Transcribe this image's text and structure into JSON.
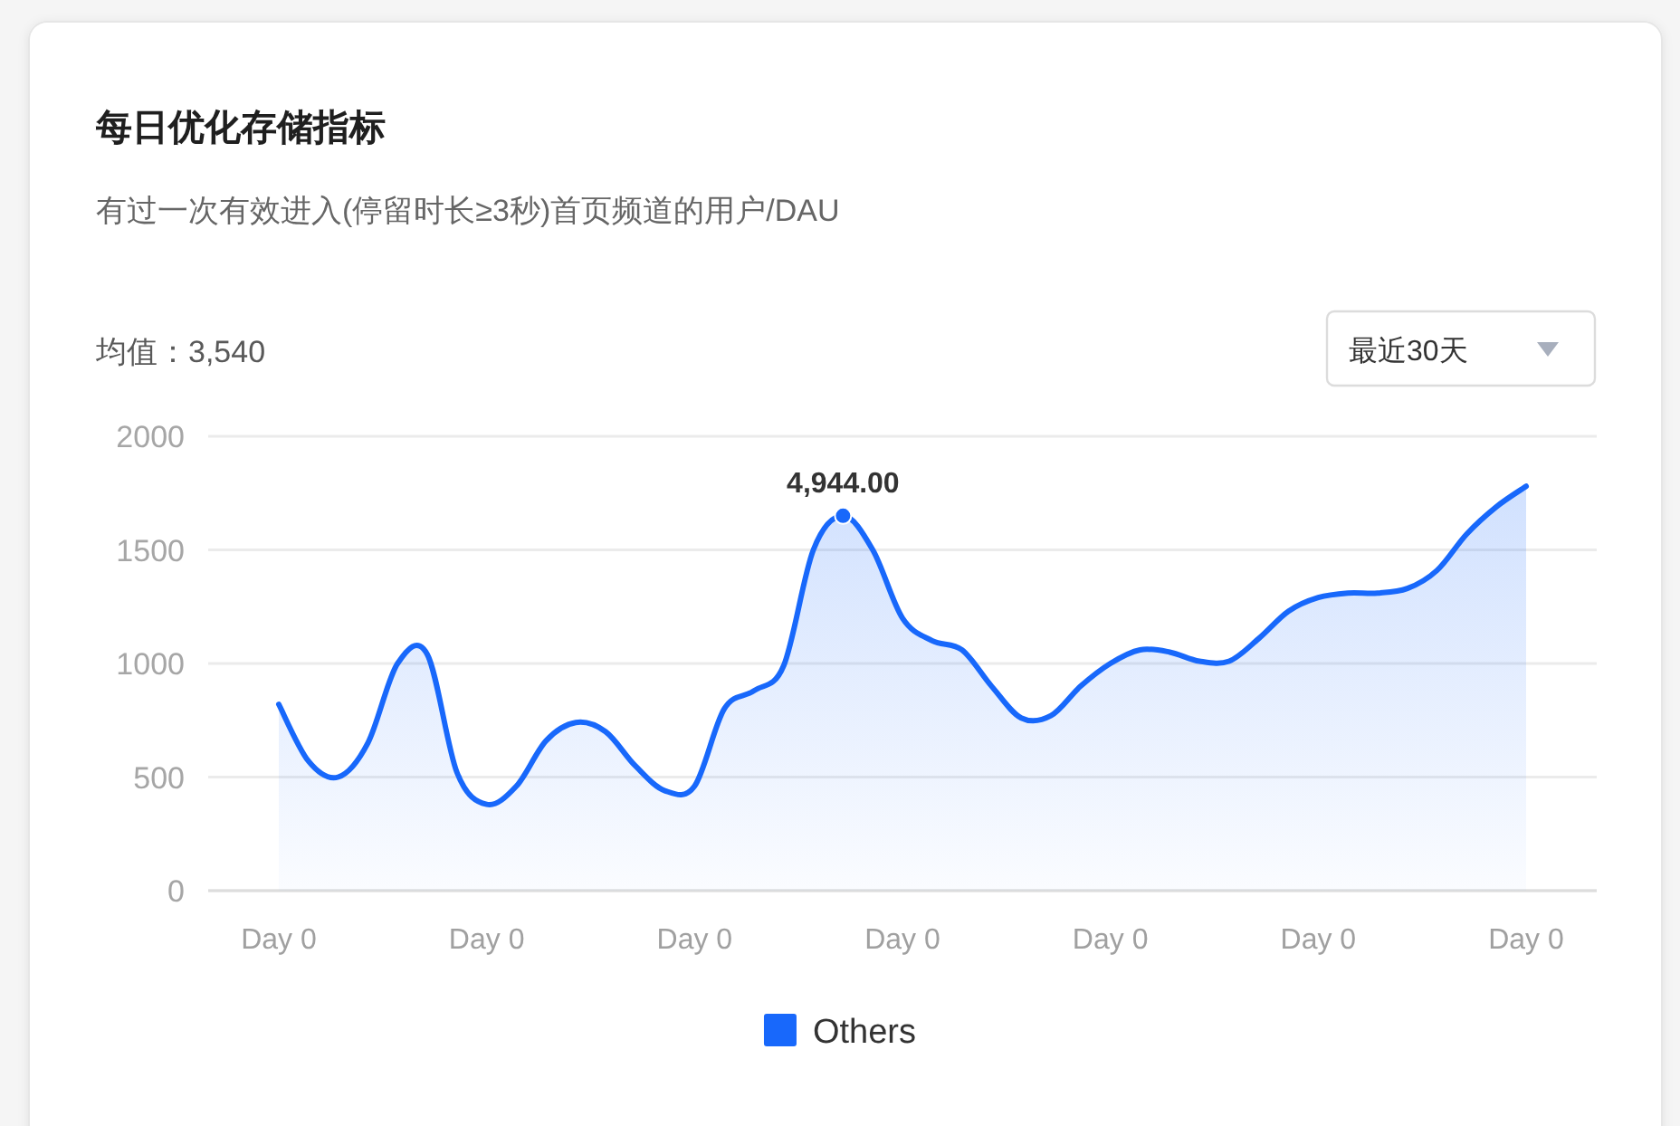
{
  "chart_data": {
    "type": "area",
    "title": "每日优化存储指标",
    "subtitle": "有过一次有效进入(停留时长≥3秒)首页频道的用户/DAU",
    "categories": [
      "Day 0",
      null,
      null,
      null,
      null,
      null,
      null,
      "Day 0",
      null,
      null,
      null,
      null,
      null,
      null,
      "Day 0",
      null,
      null,
      null,
      null,
      null,
      null,
      "Day 0",
      null,
      null,
      null,
      null,
      null,
      null,
      "Day 0",
      null,
      null,
      null,
      null,
      null,
      null,
      "Day 0",
      null,
      null,
      null,
      null,
      null,
      null,
      "Day 0"
    ],
    "series": [
      {
        "name": "Others",
        "color": "#1868fb",
        "values": [
          820,
          570,
          500,
          650,
          1000,
          1040,
          520,
          380,
          460,
          660,
          740,
          700,
          550,
          440,
          460,
          800,
          880,
          990,
          1500,
          1650,
          1500,
          1200,
          1100,
          1060,
          900,
          760,
          770,
          900,
          1000,
          1060,
          1050,
          1010,
          1010,
          1110,
          1230,
          1290,
          1310,
          1310,
          1330,
          1410,
          1570,
          1690,
          1780
        ]
      }
    ],
    "ylim": [
      0,
      2000
    ],
    "yticks": [
      0,
      500,
      1000,
      1500,
      2000
    ],
    "grid": "y",
    "legend": "bottom",
    "annotations": [
      "均值：3,540",
      "最近30天",
      {
        "text": "4,944.00",
        "y": 1650
      }
    ]
  }
}
